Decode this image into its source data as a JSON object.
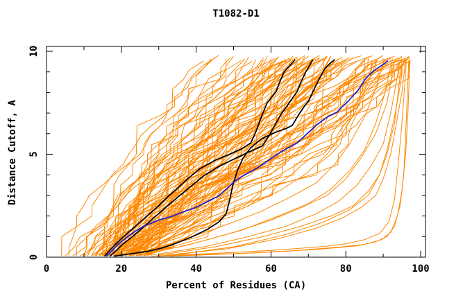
{
  "window": {
    "title": "T1082-D1"
  },
  "chart_data": {
    "type": "line",
    "title": "T1082-D1",
    "xlabel": "Percent of Residues (CA)",
    "ylabel": "Distance Cutoff, A",
    "xlim": [
      0,
      100
    ],
    "ylim": [
      0,
      10
    ],
    "x_major_ticks": [
      0,
      20,
      40,
      60,
      80,
      100
    ],
    "x_minor_ticks": [
      10,
      30,
      50,
      70,
      90
    ],
    "y_major_ticks": [
      0,
      5,
      10
    ],
    "y_minor_ticks": [
      1,
      2,
      3,
      4,
      6,
      7,
      8,
      9
    ],
    "grid": false,
    "legend": "none",
    "colors": {
      "models_orange": "#ff8800",
      "highlight_black": "#000000",
      "highlight_blue": "#2222cc",
      "frame": "#000000",
      "background": "#ffffff",
      "text": "#000000"
    },
    "orange_model_curves_pct_at_cutoff_0_5_10": [
      [
        4,
        22,
        42
      ],
      [
        5,
        24,
        44
      ],
      [
        6,
        25,
        45
      ],
      [
        7,
        26,
        46
      ],
      [
        8,
        27,
        48
      ],
      [
        9,
        28,
        49
      ],
      [
        10,
        29,
        50
      ],
      [
        10,
        30,
        52
      ],
      [
        11,
        31,
        53
      ],
      [
        12,
        32,
        54
      ],
      [
        12,
        33,
        55
      ],
      [
        13,
        34,
        56
      ],
      [
        13,
        35,
        58
      ],
      [
        14,
        36,
        59
      ],
      [
        14,
        37,
        60
      ],
      [
        15,
        38,
        61
      ],
      [
        15,
        39,
        62
      ],
      [
        16,
        40,
        63
      ],
      [
        16,
        41,
        64
      ],
      [
        17,
        42,
        65
      ],
      [
        17,
        43,
        66
      ],
      [
        18,
        44,
        67
      ],
      [
        18,
        45,
        68
      ],
      [
        19,
        46,
        69
      ],
      [
        19,
        47,
        70
      ],
      [
        20,
        48,
        71
      ],
      [
        20,
        49,
        72
      ],
      [
        21,
        50,
        73
      ],
      [
        21,
        51,
        74
      ],
      [
        22,
        52,
        75
      ],
      [
        22,
        53,
        76
      ],
      [
        23,
        54,
        77
      ],
      [
        23,
        55,
        78
      ],
      [
        24,
        56,
        79
      ],
      [
        24,
        57,
        80
      ],
      [
        16,
        36,
        66
      ],
      [
        17,
        38,
        68
      ],
      [
        18,
        40,
        70
      ],
      [
        19,
        42,
        72
      ],
      [
        20,
        44,
        74
      ],
      [
        21,
        46,
        76
      ],
      [
        22,
        48,
        78
      ],
      [
        23,
        50,
        80
      ],
      [
        24,
        52,
        82
      ],
      [
        25,
        54,
        84
      ],
      [
        12,
        30,
        58
      ],
      [
        13,
        32,
        60
      ],
      [
        14,
        34,
        62
      ],
      [
        15,
        36,
        64
      ],
      [
        16,
        38,
        65
      ],
      [
        17,
        40,
        67
      ],
      [
        18,
        42,
        69
      ],
      [
        19,
        44,
        71
      ],
      [
        20,
        46,
        73
      ],
      [
        21,
        48,
        75
      ],
      [
        11,
        33,
        63
      ],
      [
        12,
        35,
        65
      ],
      [
        13,
        37,
        67
      ],
      [
        14,
        39,
        69
      ],
      [
        15,
        41,
        71
      ],
      [
        16,
        43,
        73
      ],
      [
        17,
        45,
        75
      ],
      [
        18,
        47,
        77
      ],
      [
        19,
        49,
        79
      ],
      [
        20,
        51,
        81
      ],
      [
        22,
        55,
        83
      ],
      [
        23,
        57,
        85
      ],
      [
        24,
        59,
        86
      ],
      [
        25,
        61,
        87
      ],
      [
        26,
        63,
        88
      ],
      [
        15,
        55,
        85
      ],
      [
        16,
        56,
        86
      ],
      [
        17,
        57,
        87
      ],
      [
        18,
        58,
        88
      ],
      [
        19,
        59,
        89
      ],
      [
        20,
        60,
        90
      ],
      [
        21,
        61,
        91
      ],
      [
        22,
        62,
        92
      ],
      [
        23,
        63,
        93
      ],
      [
        24,
        64,
        94
      ],
      [
        25,
        65,
        95
      ],
      [
        26,
        66,
        95
      ],
      [
        27,
        67,
        96
      ],
      [
        28,
        68,
        96
      ],
      [
        18,
        62,
        94
      ],
      [
        19,
        64,
        95
      ],
      [
        20,
        66,
        96
      ],
      [
        21,
        68,
        96
      ],
      [
        22,
        70,
        97
      ],
      [
        23,
        72,
        97
      ],
      [
        24,
        74,
        97
      ],
      [
        25,
        76,
        97
      ],
      [
        26,
        78,
        97
      ],
      [
        17,
        60,
        92
      ],
      [
        16,
        58,
        90
      ]
    ],
    "orange_fast_curves_pts": [
      [
        [
          30,
          0.1
        ],
        [
          45,
          0.5
        ],
        [
          58,
          1.0
        ],
        [
          68,
          1.5
        ],
        [
          76,
          2.0
        ],
        [
          82,
          2.5
        ],
        [
          86,
          3.2
        ],
        [
          89,
          4.0
        ],
        [
          91,
          5.0
        ],
        [
          93,
          6.5
        ],
        [
          94,
          8.0
        ],
        [
          95,
          9.6
        ]
      ],
      [
        [
          28,
          0.1
        ],
        [
          42,
          0.5
        ],
        [
          54,
          1.0
        ],
        [
          64,
          1.5
        ],
        [
          72,
          2.1
        ],
        [
          78,
          2.7
        ],
        [
          83,
          3.5
        ],
        [
          87,
          4.5
        ],
        [
          90,
          5.5
        ],
        [
          92,
          7.0
        ],
        [
          93.5,
          8.5
        ],
        [
          94.5,
          9.6
        ]
      ],
      [
        [
          25,
          0.1
        ],
        [
          38,
          0.6
        ],
        [
          50,
          1.2
        ],
        [
          60,
          1.8
        ],
        [
          68,
          2.4
        ],
        [
          75,
          3.0
        ],
        [
          80,
          3.8
        ],
        [
          84,
          4.8
        ],
        [
          88,
          6.0
        ],
        [
          91,
          7.5
        ],
        [
          92.5,
          9.0
        ],
        [
          93,
          9.6
        ]
      ],
      [
        [
          32,
          0.1
        ],
        [
          48,
          0.4
        ],
        [
          62,
          0.9
        ],
        [
          72,
          1.4
        ],
        [
          79,
          1.9
        ],
        [
          84,
          2.4
        ],
        [
          88,
          3.0
        ],
        [
          90,
          3.8
        ],
        [
          92,
          5.0
        ],
        [
          93.5,
          6.5
        ],
        [
          95,
          8.0
        ],
        [
          96,
          9.6
        ]
      ],
      [
        [
          27,
          0.15
        ],
        [
          40,
          0.7
        ],
        [
          52,
          1.3
        ],
        [
          62,
          2.0
        ],
        [
          70,
          2.6
        ],
        [
          76,
          3.3
        ],
        [
          81,
          4.2
        ],
        [
          85,
          5.2
        ],
        [
          88,
          6.5
        ],
        [
          90.5,
          8.0
        ],
        [
          92,
          9.3
        ],
        [
          92.5,
          9.65
        ]
      ],
      [
        [
          24,
          0.2
        ],
        [
          36,
          0.8
        ],
        [
          47,
          1.5
        ],
        [
          57,
          2.2
        ],
        [
          65,
          2.9
        ],
        [
          72,
          3.6
        ],
        [
          77,
          4.5
        ],
        [
          81,
          5.5
        ],
        [
          85,
          6.8
        ],
        [
          88,
          8.2
        ],
        [
          90,
          9.4
        ],
        [
          90.5,
          9.65
        ]
      ],
      [
        [
          34,
          0.1
        ],
        [
          50,
          0.5
        ],
        [
          64,
          1.1
        ],
        [
          74,
          1.7
        ],
        [
          81,
          2.3
        ],
        [
          86,
          3.0
        ],
        [
          89,
          4.0
        ],
        [
          91,
          5.2
        ],
        [
          93,
          6.8
        ],
        [
          94.5,
          8.3
        ],
        [
          95.5,
          9.5
        ],
        [
          96,
          9.65
        ]
      ],
      [
        [
          22,
          0.25
        ],
        [
          33,
          0.9
        ],
        [
          44,
          1.7
        ],
        [
          54,
          2.5
        ],
        [
          62,
          3.2
        ],
        [
          69,
          4.0
        ],
        [
          75,
          5.0
        ],
        [
          79,
          6.0
        ],
        [
          83,
          7.2
        ],
        [
          86,
          8.5
        ],
        [
          88,
          9.4
        ],
        [
          88.5,
          9.65
        ]
      ]
    ],
    "orange_outlier_curves_pts": [
      [
        [
          30,
          0.05
        ],
        [
          38,
          0.1
        ],
        [
          46,
          0.15
        ],
        [
          54,
          0.2
        ],
        [
          62,
          0.28
        ],
        [
          70,
          0.35
        ],
        [
          77,
          0.45
        ],
        [
          83,
          0.55
        ],
        [
          88,
          0.75
        ],
        [
          91,
          1.0
        ],
        [
          93,
          1.5
        ],
        [
          94.5,
          2.5
        ],
        [
          95.5,
          4.0
        ],
        [
          96,
          6.0
        ],
        [
          96.5,
          8.0
        ],
        [
          96.8,
          9.55
        ]
      ],
      [
        [
          28,
          0.05
        ],
        [
          36,
          0.12
        ],
        [
          44,
          0.18
        ],
        [
          52,
          0.25
        ],
        [
          60,
          0.33
        ],
        [
          67,
          0.42
        ],
        [
          74,
          0.52
        ],
        [
          80,
          0.65
        ],
        [
          85,
          0.85
        ],
        [
          89,
          1.15
        ],
        [
          91.5,
          1.7
        ],
        [
          93,
          2.8
        ],
        [
          94,
          4.5
        ],
        [
          95,
          6.5
        ],
        [
          95.8,
          8.5
        ],
        [
          96.2,
          9.6
        ]
      ],
      [
        [
          33,
          0.05
        ],
        [
          41,
          0.1
        ],
        [
          49,
          0.16
        ],
        [
          57,
          0.22
        ],
        [
          65,
          0.3
        ],
        [
          72,
          0.4
        ],
        [
          79,
          0.5
        ],
        [
          85,
          0.62
        ],
        [
          89.5,
          0.85
        ],
        [
          92,
          1.2
        ],
        [
          93.8,
          2.0
        ],
        [
          95,
          3.2
        ],
        [
          96,
          5.0
        ],
        [
          96.6,
          7.0
        ],
        [
          97,
          9.0
        ],
        [
          97.2,
          9.6
        ]
      ]
    ],
    "black_curves_pts": [
      [
        [
          15.5,
          0.05
        ],
        [
          16.5,
          0.25
        ],
        [
          18,
          0.55
        ],
        [
          20,
          0.9
        ],
        [
          22.5,
          1.3
        ],
        [
          25,
          1.7
        ],
        [
          27.5,
          2.1
        ],
        [
          30,
          2.5
        ],
        [
          32.5,
          2.95
        ],
        [
          35,
          3.35
        ],
        [
          38,
          3.85
        ],
        [
          41,
          4.3
        ],
        [
          45,
          4.7
        ],
        [
          49,
          5.0
        ],
        [
          52,
          5.25
        ],
        [
          54.6,
          5.55
        ],
        [
          56,
          6.1
        ],
        [
          57.7,
          6.95
        ],
        [
          59,
          7.5
        ],
        [
          61.4,
          8.05
        ],
        [
          62.3,
          8.5
        ],
        [
          63.5,
          9.0
        ],
        [
          65,
          9.3
        ],
        [
          66.5,
          9.6
        ]
      ],
      [
        [
          17,
          0.05
        ],
        [
          18.5,
          0.3
        ],
        [
          20.5,
          0.65
        ],
        [
          23,
          1.0
        ],
        [
          25.5,
          1.4
        ],
        [
          28,
          1.8
        ],
        [
          30.5,
          2.2
        ],
        [
          33,
          2.6
        ],
        [
          36,
          3.05
        ],
        [
          39,
          3.5
        ],
        [
          42,
          3.95
        ],
        [
          46,
          4.4
        ],
        [
          50.5,
          4.8
        ],
        [
          54,
          5.1
        ],
        [
          57.7,
          5.4
        ],
        [
          59.5,
          5.9
        ],
        [
          61,
          6.4
        ],
        [
          62.7,
          6.95
        ],
        [
          64.5,
          7.4
        ],
        [
          67,
          8.05
        ],
        [
          68,
          8.5
        ],
        [
          69.3,
          9.0
        ],
        [
          70.3,
          9.3
        ],
        [
          71.2,
          9.6
        ]
      ],
      [
        [
          18,
          0.05
        ],
        [
          22,
          0.15
        ],
        [
          27,
          0.28
        ],
        [
          31,
          0.45
        ],
        [
          35,
          0.7
        ],
        [
          39,
          1.0
        ],
        [
          43,
          1.35
        ],
        [
          46,
          1.7
        ],
        [
          48,
          2.1
        ],
        [
          49,
          2.8
        ],
        [
          49.8,
          3.5
        ],
        [
          51,
          4.2
        ],
        [
          52.5,
          4.8
        ],
        [
          54.5,
          5.3
        ],
        [
          57.5,
          5.75
        ],
        [
          61,
          6.05
        ],
        [
          64,
          6.25
        ],
        [
          65.7,
          6.4
        ],
        [
          67.5,
          6.95
        ],
        [
          69,
          7.35
        ],
        [
          70.1,
          7.6
        ],
        [
          71.5,
          8.15
        ],
        [
          73,
          8.7
        ],
        [
          74.4,
          9.15
        ],
        [
          75.7,
          9.4
        ],
        [
          77,
          9.6
        ]
      ]
    ],
    "blue_curve_pts": [
      [
        16,
        0.05
      ],
      [
        17.5,
        0.3
      ],
      [
        19,
        0.6
      ],
      [
        21,
        0.9
      ],
      [
        23.2,
        1.2
      ],
      [
        26,
        1.5
      ],
      [
        30,
        1.8
      ],
      [
        33.8,
        2.0
      ],
      [
        36.5,
        2.2
      ],
      [
        39.7,
        2.4
      ],
      [
        43,
        2.7
      ],
      [
        45.8,
        2.95
      ],
      [
        48,
        3.3
      ],
      [
        50.4,
        3.7
      ],
      [
        52.5,
        3.95
      ],
      [
        54.5,
        4.15
      ],
      [
        56.5,
        4.35
      ],
      [
        58.5,
        4.6
      ],
      [
        60.5,
        4.85
      ],
      [
        62.5,
        5.1
      ],
      [
        64.5,
        5.3
      ],
      [
        67,
        5.55
      ],
      [
        68.5,
        5.8
      ],
      [
        70.6,
        6.15
      ],
      [
        72,
        6.4
      ],
      [
        73.5,
        6.6
      ],
      [
        75,
        6.8
      ],
      [
        77.7,
        7.05
      ],
      [
        79,
        7.3
      ],
      [
        80.5,
        7.55
      ],
      [
        81.7,
        7.8
      ],
      [
        83,
        8.05
      ],
      [
        84,
        8.3
      ],
      [
        85,
        8.6
      ],
      [
        86.2,
        8.85
      ],
      [
        87.5,
        9.05
      ],
      [
        89,
        9.25
      ],
      [
        90.3,
        9.4
      ],
      [
        91.3,
        9.55
      ]
    ]
  }
}
